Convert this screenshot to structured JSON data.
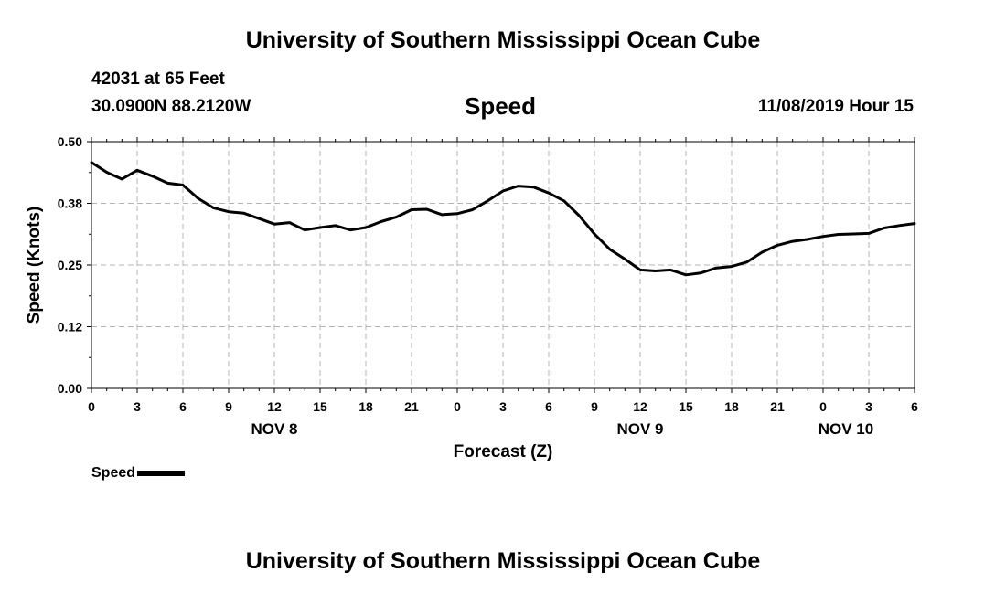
{
  "header": {
    "title": "University of Southern Mississippi Ocean Cube",
    "station": "42031 at 65 Feet",
    "coords": "30.0900N 88.2120W",
    "chart_title": "Speed",
    "timestamp": "11/08/2019 Hour 15"
  },
  "footer": {
    "title": "University of Southern Mississippi Ocean Cube"
  },
  "legend": {
    "label": "Speed"
  },
  "colors": {
    "line": "#000000",
    "grid": "#b4b4b4",
    "axis": "#000000"
  },
  "chart_data": {
    "type": "line",
    "title": "Speed",
    "xlabel": "Forecast (Z)",
    "ylabel": "Speed (Knots)",
    "ylim": [
      0,
      0.5
    ],
    "xlim": [
      0,
      54
    ],
    "x_unit": "hours from 00Z NOV 8",
    "yticks": [
      "0.00",
      "0.12",
      "0.25",
      "0.38",
      "0.50"
    ],
    "xticks": [
      "0",
      "3",
      "6",
      "9",
      "12",
      "15",
      "18",
      "21",
      "0",
      "3",
      "6",
      "9",
      "12",
      "15",
      "18",
      "21",
      "0",
      "3",
      "6"
    ],
    "date_labels": [
      {
        "label": "NOV 8",
        "hour": 12
      },
      {
        "label": "NOV 9",
        "hour": 36
      },
      {
        "label": "NOV 10",
        "hour": 49.5
      }
    ],
    "grid": true,
    "legend_position": "bottom-left",
    "series": [
      {
        "name": "Speed",
        "x": [
          0,
          1,
          2,
          3,
          4,
          5,
          6,
          7,
          8,
          9,
          10,
          11,
          12,
          13,
          14,
          15,
          16,
          17,
          18,
          19,
          20,
          21,
          22,
          23,
          24,
          25,
          26,
          27,
          28,
          29,
          30,
          31,
          32,
          33,
          34,
          35,
          36,
          37,
          38,
          39,
          40,
          41,
          42,
          43,
          44,
          45,
          46,
          47,
          48,
          49,
          50,
          51,
          52,
          53,
          54
        ],
        "values": [
          0.458,
          0.438,
          0.424,
          0.442,
          0.43,
          0.416,
          0.412,
          0.385,
          0.366,
          0.358,
          0.355,
          0.344,
          0.333,
          0.336,
          0.321,
          0.326,
          0.33,
          0.321,
          0.326,
          0.338,
          0.347,
          0.362,
          0.363,
          0.352,
          0.354,
          0.362,
          0.38,
          0.4,
          0.41,
          0.408,
          0.396,
          0.38,
          0.35,
          0.313,
          0.282,
          0.262,
          0.24,
          0.238,
          0.24,
          0.23,
          0.234,
          0.244,
          0.247,
          0.256,
          0.276,
          0.29,
          0.298,
          0.302,
          0.308,
          0.312,
          0.313,
          0.314,
          0.325,
          0.33,
          0.334
        ]
      }
    ]
  }
}
